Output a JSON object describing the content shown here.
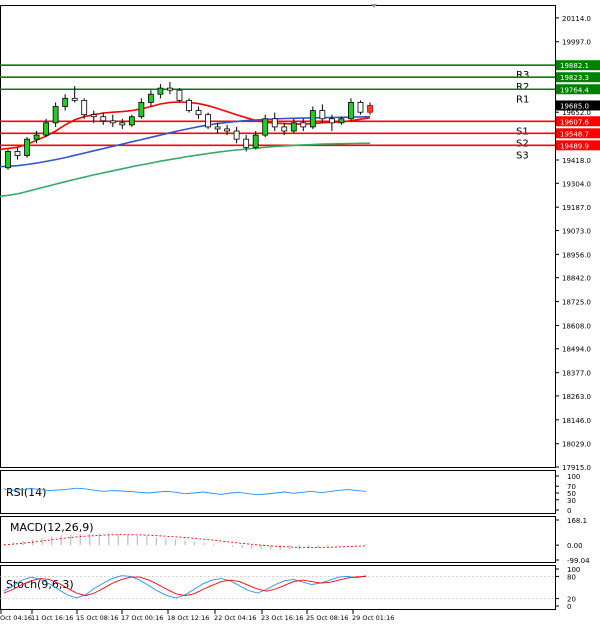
{
  "chart_data": [
    {
      "type": "candlestick",
      "panel": "main",
      "ylim": [
        17915.0,
        20172.0
      ],
      "y_ticks": [
        "20114.0",
        "19997.0",
        "19882.1",
        "19764.4",
        "19685.0",
        "19652.0",
        "19607.6",
        "19548.7",
        "19489.9",
        "19418.0",
        "19304.0",
        "19187.0",
        "19073.0",
        "18956.0",
        "18842.0",
        "18725.0",
        "18608.0",
        "18494.0",
        "18377.0",
        "18263.0",
        "18146.0",
        "18029.0",
        "17915.0"
      ],
      "y_tick_values": [
        20114.0,
        19997.0,
        19882.1,
        19764.4,
        19685.0,
        19652.0,
        19607.6,
        19548.7,
        19489.9,
        19418.0,
        19304.0,
        19187.0,
        19073.0,
        18956.0,
        18842.0,
        18725.0,
        18608.0,
        18494.0,
        18377.0,
        18263.0,
        18146.0,
        18029.0,
        17915.0
      ],
      "price_badges": [
        {
          "label": "19882.1",
          "value": 19882.1,
          "color": "#008000"
        },
        {
          "label": "19823.3",
          "value": 19823.3,
          "color": "#008000"
        },
        {
          "label": "19764.4",
          "value": 19764.4,
          "color": "#008000"
        },
        {
          "label": "19685.0",
          "value": 19685.0,
          "color": "#000000"
        },
        {
          "label": "19607.6",
          "value": 19607.6,
          "color": "#ff0000"
        },
        {
          "label": "19548.7",
          "value": 19548.7,
          "color": "#ff0000"
        },
        {
          "label": "19489.9",
          "value": 19489.9,
          "color": "#ff0000"
        }
      ],
      "levels": [
        {
          "name": "R3",
          "value": 19882.1,
          "color": "#008000"
        },
        {
          "name": "R2",
          "value": 19823.3,
          "color": "#008000"
        },
        {
          "name": "R1",
          "value": 19764.4,
          "color": "#008000"
        },
        {
          "name": "S1",
          "value": 19607.6,
          "color": "#ff0000"
        },
        {
          "name": "S2",
          "value": 19548.7,
          "color": "#ff0000"
        },
        {
          "name": "S3",
          "value": 19489.9,
          "color": "#ff0000"
        }
      ],
      "candles": [
        [
          19380,
          19470,
          19370,
          19460
        ],
        [
          19460,
          19480,
          19420,
          19440
        ],
        [
          19440,
          19530,
          19430,
          19520
        ],
        [
          19520,
          19560,
          19500,
          19540
        ],
        [
          19540,
          19620,
          19530,
          19600
        ],
        [
          19600,
          19700,
          19580,
          19680
        ],
        [
          19680,
          19740,
          19660,
          19720
        ],
        [
          19720,
          19780,
          19700,
          19710
        ],
        [
          19710,
          19720,
          19620,
          19640
        ],
        [
          19640,
          19660,
          19600,
          19630
        ],
        [
          19630,
          19650,
          19590,
          19610
        ],
        [
          19610,
          19640,
          19580,
          19600
        ],
        [
          19600,
          19620,
          19570,
          19590
        ],
        [
          19590,
          19640,
          19580,
          19630
        ],
        [
          19630,
          19720,
          19620,
          19700
        ],
        [
          19700,
          19760,
          19680,
          19740
        ],
        [
          19740,
          19790,
          19720,
          19770
        ],
        [
          19770,
          19800,
          19740,
          19760
        ],
        [
          19760,
          19770,
          19700,
          19710
        ],
        [
          19710,
          19720,
          19650,
          19660
        ],
        [
          19660,
          19680,
          19620,
          19640
        ],
        [
          19640,
          19650,
          19570,
          19580
        ],
        [
          19580,
          19600,
          19550,
          19570
        ],
        [
          19570,
          19590,
          19540,
          19560
        ],
        [
          19560,
          19580,
          19500,
          19520
        ],
        [
          19520,
          19540,
          19460,
          19480
        ],
        [
          19480,
          19560,
          19470,
          19540
        ],
        [
          19540,
          19640,
          19530,
          19620
        ],
        [
          19620,
          19650,
          19560,
          19580
        ],
        [
          19580,
          19600,
          19540,
          19560
        ],
        [
          19560,
          19620,
          19550,
          19600
        ],
        [
          19600,
          19620,
          19560,
          19580
        ],
        [
          19580,
          19680,
          19570,
          19660
        ],
        [
          19660,
          19690,
          19600,
          19620
        ],
        [
          19620,
          19640,
          19560,
          19600
        ],
        [
          19600,
          19630,
          19590,
          19620
        ],
        [
          19620,
          19720,
          19610,
          19700
        ],
        [
          19700,
          19710,
          19640,
          19652
        ],
        [
          19652,
          19700,
          19640,
          19685
        ]
      ],
      "moving_averages": [
        {
          "color": "#ff0000",
          "values": [
            19470,
            19480,
            19495,
            19515,
            19535,
            19560,
            19590,
            19615,
            19630,
            19640,
            19648,
            19652,
            19655,
            19660,
            19668,
            19680,
            19692,
            19700,
            19702,
            19700,
            19694,
            19684,
            19670,
            19655,
            19640,
            19625,
            19612,
            19603,
            19598,
            19596,
            19595,
            19594,
            19596,
            19600,
            19603,
            19605,
            19610,
            19618,
            19625
          ]
        },
        {
          "color": "#3355cc",
          "values": [
            19385,
            19390,
            19396,
            19403,
            19411,
            19420,
            19430,
            19441,
            19452,
            19463,
            19474,
            19485,
            19496,
            19507,
            19518,
            19529,
            19540,
            19551,
            19562,
            19572,
            19581,
            19589,
            19596,
            19602,
            19607,
            19611,
            19614,
            19617,
            19619,
            19621,
            19622,
            19623,
            19624,
            19625,
            19626,
            19627,
            19628,
            19629,
            19630
          ]
        },
        {
          "color": "#33aa66",
          "values": [
            19240,
            19252,
            19264,
            19276,
            19288,
            19300,
            19312,
            19323,
            19334,
            19345,
            19355,
            19365,
            19375,
            19385,
            19394,
            19403,
            19412,
            19420,
            19428,
            19436,
            19443,
            19450,
            19456,
            19462,
            19467,
            19472,
            19476,
            19480,
            19484,
            19487,
            19490,
            19492,
            19494,
            19496,
            19497,
            19498,
            19499,
            19500,
            19500
          ]
        }
      ],
      "x_tick_labels": [
        "Oct 04:16",
        "11 Oct 16:16",
        "15 Oct 08:16",
        "17 Oct 00:16",
        "18 Oct 12:16",
        "22 Oct 04:16",
        "23 Oct 16:16",
        "25 Oct 08:16",
        "29 Oct 01:16"
      ]
    },
    {
      "type": "line",
      "panel": "rsi",
      "title": "RSI(14)",
      "ylim": [
        0,
        100
      ],
      "y_ticks": [
        "100",
        "70",
        "50",
        "30",
        "0"
      ],
      "y_tick_values": [
        100,
        70,
        50,
        30,
        0
      ],
      "series": [
        {
          "color": "#1e90ff",
          "values": [
            62,
            58,
            60,
            63,
            60,
            57,
            59,
            61,
            64,
            62,
            58,
            55,
            57,
            56,
            54,
            52,
            50,
            53,
            55,
            52,
            48,
            50,
            53,
            49,
            46,
            50,
            52,
            48,
            45,
            47,
            50,
            53,
            49,
            52,
            55,
            51,
            54,
            58,
            60,
            57,
            55
          ]
        }
      ]
    },
    {
      "type": "bar",
      "panel": "macd",
      "title": "MACD(12,26,9)",
      "ylim": [
        -99.04,
        168.1
      ],
      "y_ticks": [
        "168.1",
        "0.00",
        "-99.04"
      ],
      "y_tick_values": [
        168.1,
        0.0,
        -99.04
      ],
      "values": [
        8,
        18,
        28,
        38,
        48,
        58,
        66,
        72,
        76,
        78,
        78,
        76,
        73,
        69,
        64,
        58,
        52,
        45,
        38,
        30,
        22,
        14,
        6,
        -2,
        -10,
        -18,
        -24,
        -28,
        -30,
        -30,
        -28,
        -25,
        -21,
        -16,
        -11,
        -6,
        -1,
        3,
        7
      ],
      "signal": {
        "color": "#ff0000",
        "values": [
          2,
          7,
          13,
          20,
          28,
          36,
          44,
          51,
          57,
          62,
          66,
          69,
          70,
          70,
          69,
          67,
          64,
          60,
          56,
          51,
          45,
          39,
          33,
          26,
          19,
          12,
          6,
          0,
          -5,
          -9,
          -12,
          -14,
          -15,
          -15,
          -14,
          -12,
          -10,
          -7,
          -4
        ]
      }
    },
    {
      "type": "line",
      "panel": "stoch",
      "title": "Stoch(9,6,3)",
      "ylim": [
        0,
        100
      ],
      "y_ticks": [
        "100",
        "80",
        "20",
        "0"
      ],
      "y_tick_values": [
        100,
        80,
        20,
        0
      ],
      "series": [
        {
          "color": "#1e90ff",
          "values": [
            40,
            55,
            70,
            78,
            72,
            60,
            45,
            30,
            22,
            30,
            48,
            62,
            75,
            82,
            80,
            70,
            55,
            40,
            28,
            22,
            30,
            45,
            60,
            70,
            74,
            68,
            55,
            42,
            35,
            45,
            58,
            68,
            72,
            65,
            58,
            62,
            70,
            78,
            80,
            76,
            82
          ]
        },
        {
          "color": "#ff0000",
          "values": [
            35,
            45,
            58,
            68,
            74,
            72,
            62,
            48,
            35,
            28,
            35,
            48,
            62,
            72,
            78,
            78,
            70,
            58,
            45,
            33,
            28,
            33,
            45,
            56,
            66,
            70,
            66,
            56,
            46,
            40,
            46,
            56,
            66,
            70,
            66,
            62,
            64,
            70,
            76,
            79,
            80
          ]
        }
      ]
    }
  ]
}
